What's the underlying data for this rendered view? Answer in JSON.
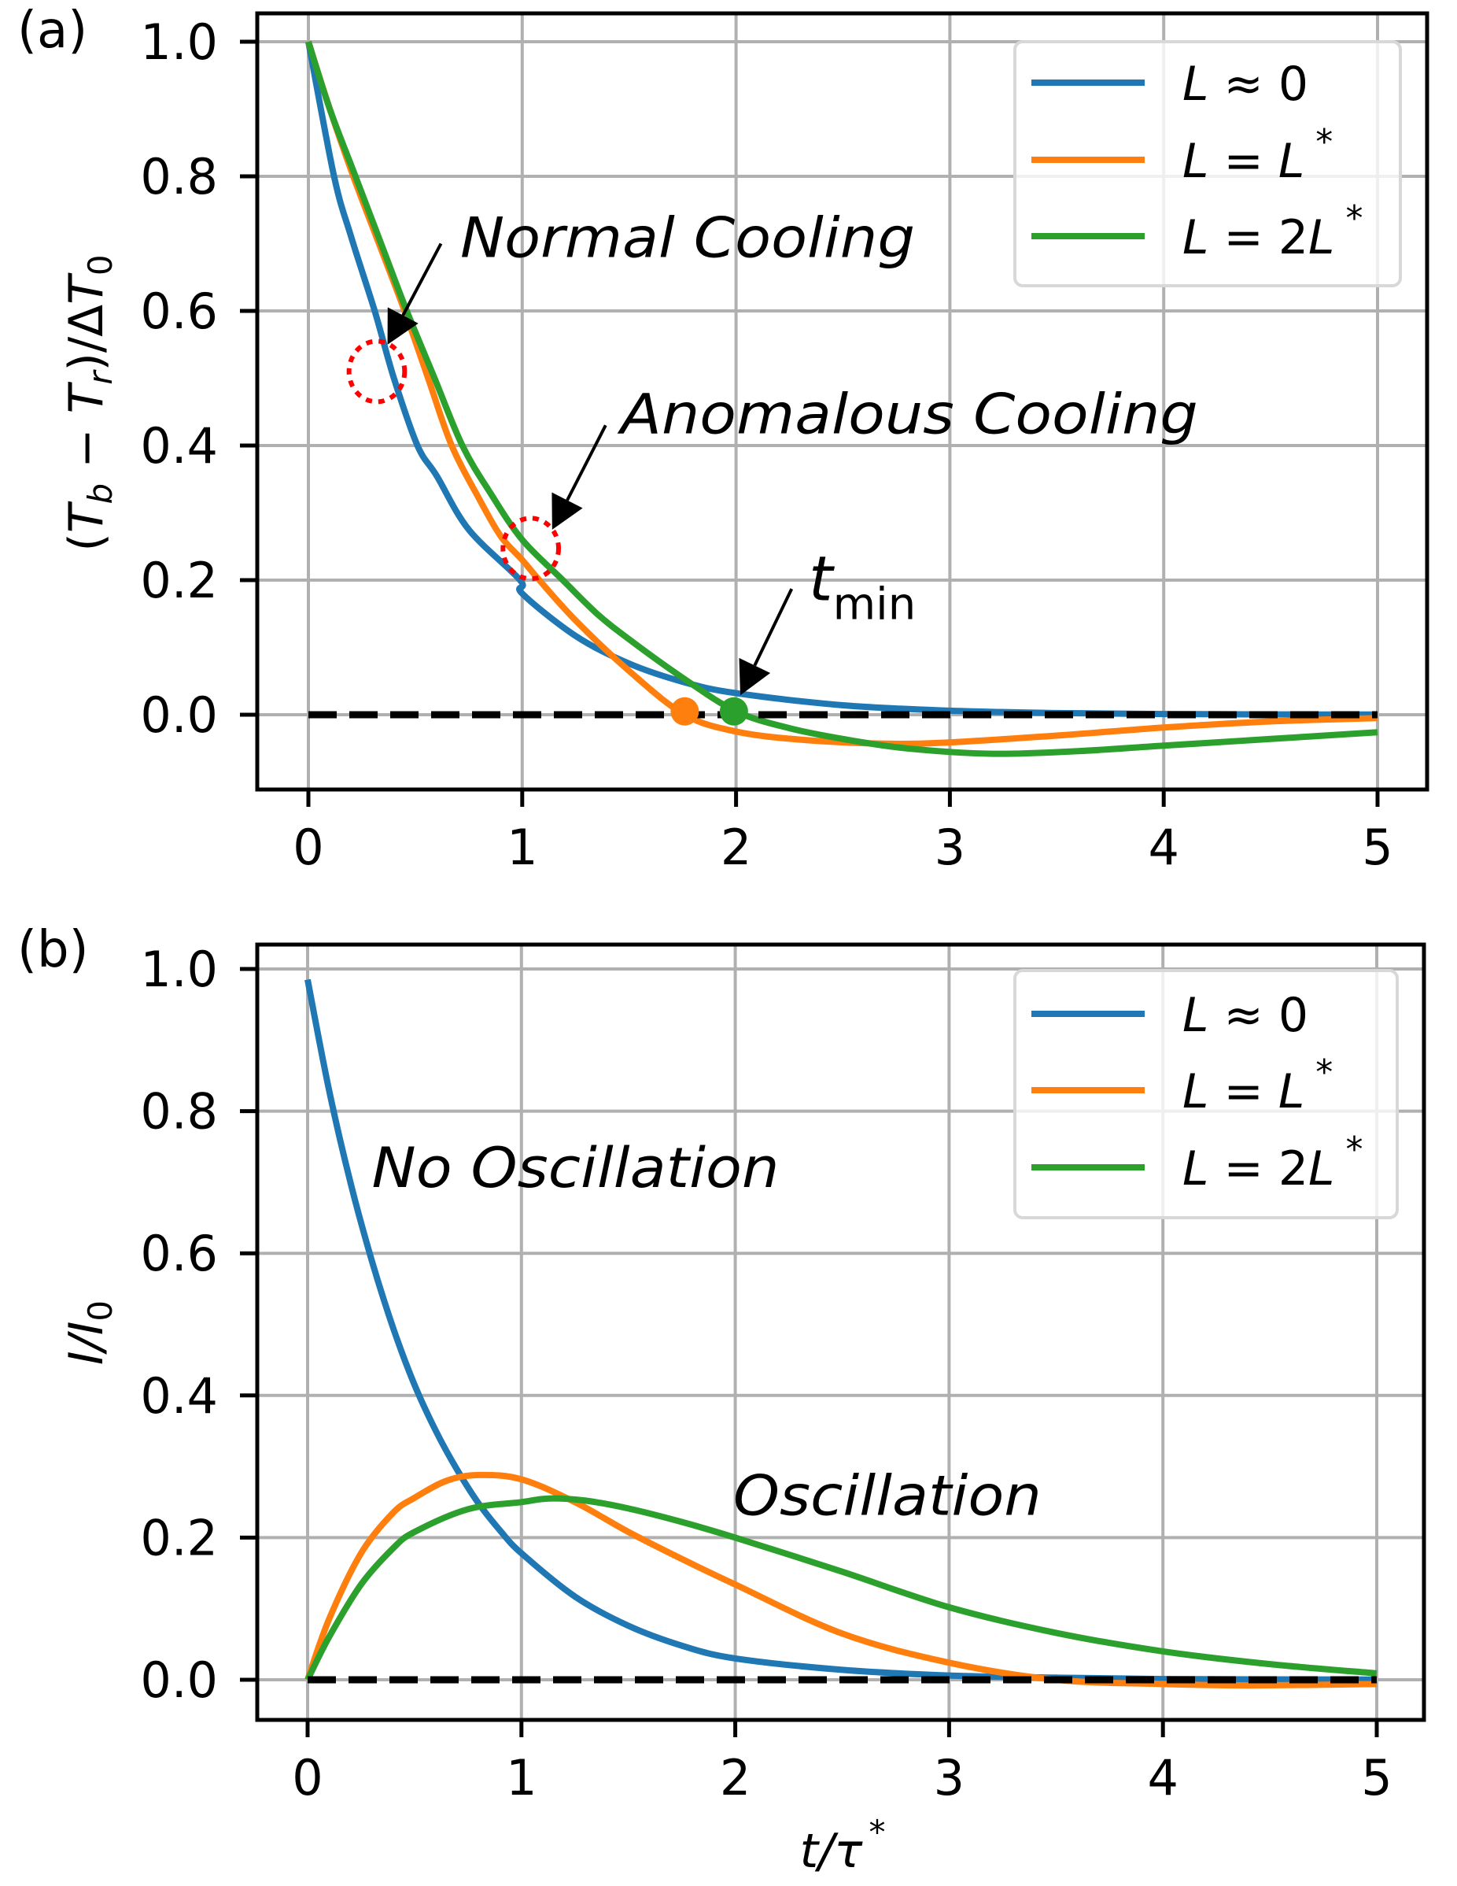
{
  "chart_data": [
    {
      "id": "a",
      "type": "line",
      "panel_label": "(a)",
      "title": "",
      "xlabel": "",
      "ylabel": "(T_b − T_r)/ΔT_0",
      "ylabel_parts": {
        "open": "(",
        "t1": "T",
        "sub1": "b",
        "minus": " − ",
        "t2": "T",
        "sub2": "r",
        "close": ")/Δ",
        "t3": "T",
        "sub3": "0"
      },
      "xlim": [
        -0.25,
        5.25
      ],
      "ylim": [
        -0.11,
        1.04
      ],
      "xticks": [
        0,
        1,
        2,
        3,
        4,
        5
      ],
      "xtick_labels": [
        "0",
        "1",
        "2",
        "3",
        "4",
        "5"
      ],
      "yticks": [
        0.0,
        0.2,
        0.4,
        0.6,
        0.8,
        1.0
      ],
      "ytick_labels": [
        "0.0",
        "0.2",
        "0.4",
        "0.6",
        "0.8",
        "1.0"
      ],
      "grid": true,
      "legend_position": "top-right",
      "reference_line": {
        "y": 0,
        "style": "dashed",
        "color": "#000000",
        "x_range": [
          0,
          5
        ]
      },
      "series": [
        {
          "name": "L ≈ 0",
          "legend": {
            "lhs": "L",
            "op": " ≈ ",
            "rhs": "0",
            "rhs_italic": false,
            "sup": ""
          },
          "color": "#1f77b4",
          "points": [
            [
              0,
              1.0
            ],
            [
              0.12,
              0.8
            ],
            [
              0.2,
              0.71
            ],
            [
              0.31,
              0.6
            ],
            [
              0.4,
              0.5
            ],
            [
              0.51,
              0.4
            ],
            [
              0.6,
              0.355
            ],
            [
              0.75,
              0.275
            ],
            [
              0.99,
              0.2
            ],
            [
              1.0,
              0.18
            ],
            [
              1.25,
              0.117
            ],
            [
              1.5,
              0.076
            ],
            [
              1.75,
              0.049
            ],
            [
              2.0,
              0.032
            ],
            [
              2.5,
              0.014
            ],
            [
              3.0,
              0.006
            ],
            [
              3.5,
              0.0025
            ],
            [
              4.0,
              0.001
            ],
            [
              4.5,
              0.0005
            ],
            [
              5.0,
              0.0002
            ]
          ]
        },
        {
          "name": "L = L*",
          "legend": {
            "lhs": "L",
            "op": " = ",
            "rhs": "L",
            "rhs_italic": true,
            "sup": "*"
          },
          "color": "#ff7f0e",
          "points": [
            [
              0,
              1.0
            ],
            [
              0.1,
              0.9
            ],
            [
              0.21,
              0.8
            ],
            [
              0.33,
              0.7
            ],
            [
              0.45,
              0.6
            ],
            [
              0.56,
              0.5
            ],
            [
              0.67,
              0.4
            ],
            [
              0.8,
              0.32
            ],
            [
              0.9,
              0.265
            ],
            [
              1.0,
              0.23
            ],
            [
              1.08,
              0.2
            ],
            [
              1.25,
              0.14
            ],
            [
              1.5,
              0.065
            ],
            [
              1.76,
              0.0
            ],
            [
              2.0,
              -0.025
            ],
            [
              2.3,
              -0.037
            ],
            [
              2.7,
              -0.043
            ],
            [
              3.0,
              -0.041
            ],
            [
              3.5,
              -0.031
            ],
            [
              4.0,
              -0.019
            ],
            [
              4.5,
              -0.01
            ],
            [
              5.0,
              -0.005
            ]
          ]
        },
        {
          "name": "L = 2L*",
          "legend": {
            "lhs": "L",
            "op": " = ",
            "rhs": "2L",
            "rhs_italic": true,
            "sup": "*"
          },
          "color": "#2ca02c",
          "points": [
            [
              0,
              1.0
            ],
            [
              0.1,
              0.9
            ],
            [
              0.22,
              0.8
            ],
            [
              0.34,
              0.7
            ],
            [
              0.46,
              0.6
            ],
            [
              0.59,
              0.5
            ],
            [
              0.72,
              0.4
            ],
            [
              0.85,
              0.33
            ],
            [
              1.0,
              0.26
            ],
            [
              1.19,
              0.2
            ],
            [
              1.35,
              0.15
            ],
            [
              1.5,
              0.112
            ],
            [
              1.75,
              0.055
            ],
            [
              2.0,
              0.005
            ],
            [
              2.25,
              -0.02
            ],
            [
              2.5,
              -0.036
            ],
            [
              2.8,
              -0.05
            ],
            [
              3.2,
              -0.058
            ],
            [
              3.6,
              -0.054
            ],
            [
              4.0,
              -0.046
            ],
            [
              4.5,
              -0.036
            ],
            [
              5.0,
              -0.026
            ]
          ]
        }
      ],
      "markers": [
        {
          "name": "orange-zero-crossing",
          "x": 1.76,
          "y": 0.005,
          "color": "#ff7f0e"
        },
        {
          "name": "green-tmin",
          "x": 1.99,
          "y": 0.005,
          "color": "#2ca02c"
        }
      ],
      "annotations": [
        {
          "id": "normal",
          "text": "Normal Cooling",
          "text_x": 0.71,
          "text_y": 0.68,
          "arrow_from": [
            0.62,
            0.7
          ],
          "arrow_to": [
            0.37,
            0.55
          ],
          "circle": {
            "x": 0.32,
            "y": 0.51,
            "r_x": 0.13,
            "r_y": 0.045
          }
        },
        {
          "id": "anomalous",
          "text": "Anomalous Cooling",
          "text_x": 1.46,
          "text_y": 0.418,
          "arrow_from": [
            1.39,
            0.43
          ],
          "arrow_to": [
            1.14,
            0.275
          ],
          "circle": {
            "x": 1.04,
            "y": 0.247,
            "r_x": 0.13,
            "r_y": 0.045
          }
        },
        {
          "id": "tmin",
          "text": "t",
          "sub": "min",
          "text_x": 2.34,
          "text_y": 0.17,
          "arrow_from": [
            2.26,
            0.187
          ],
          "arrow_to": [
            2.02,
            0.029
          ]
        }
      ]
    },
    {
      "id": "b",
      "type": "line",
      "panel_label": "(b)",
      "title": "",
      "xlabel": "t/τ*",
      "xlabel_parts": {
        "main": "t/τ",
        "sup": "*"
      },
      "ylabel": "I/I_0",
      "ylabel_parts": {
        "main": "I/I",
        "sub": "0"
      },
      "xlim": [
        -0.25,
        5.25
      ],
      "ylim": [
        -0.11,
        1.04
      ],
      "xticks": [
        0,
        1,
        2,
        3,
        4,
        5
      ],
      "xtick_labels": [
        "0",
        "1",
        "2",
        "3",
        "4",
        "5"
      ],
      "yticks": [
        0.0,
        0.2,
        0.4,
        0.6,
        0.8,
        1.0
      ],
      "ytick_labels": [
        "0.0",
        "0.2",
        "0.4",
        "0.6",
        "0.8",
        "1.0"
      ],
      "grid": true,
      "legend_position": "top-right",
      "reference_line": {
        "y": 0,
        "style": "dashed",
        "color": "#000000",
        "x_range": [
          0,
          5
        ]
      },
      "series": [
        {
          "name": "L ≈ 0",
          "legend": {
            "lhs": "L",
            "op": " ≈ ",
            "rhs": "0",
            "rhs_italic": false,
            "sup": ""
          },
          "color": "#1f77b4",
          "points": [
            [
              0,
              0.985
            ],
            [
              0.1,
              0.83
            ],
            [
              0.2,
              0.7
            ],
            [
              0.3,
              0.59
            ],
            [
              0.4,
              0.495
            ],
            [
              0.5,
              0.415
            ],
            [
              0.6,
              0.35
            ],
            [
              0.7,
              0.295
            ],
            [
              0.8,
              0.248
            ],
            [
              0.9,
              0.21
            ],
            [
              1.0,
              0.178
            ],
            [
              1.25,
              0.117
            ],
            [
              1.5,
              0.076
            ],
            [
              1.75,
              0.048
            ],
            [
              2.0,
              0.03
            ],
            [
              2.5,
              0.014
            ],
            [
              3.0,
              0.006
            ],
            [
              3.5,
              0.003
            ],
            [
              4.0,
              0.001
            ],
            [
              4.5,
              0.0005
            ],
            [
              5.0,
              0.0002
            ]
          ]
        },
        {
          "name": "L = L*",
          "legend": {
            "lhs": "L",
            "op": " = ",
            "rhs": "L",
            "rhs_italic": true,
            "sup": "*"
          },
          "color": "#ff7f0e",
          "points": [
            [
              0,
              0.0
            ],
            [
              0.1,
              0.085
            ],
            [
              0.25,
              0.178
            ],
            [
              0.4,
              0.235
            ],
            [
              0.5,
              0.256
            ],
            [
              0.65,
              0.28
            ],
            [
              0.8,
              0.288
            ],
            [
              1.0,
              0.282
            ],
            [
              1.25,
              0.25
            ],
            [
              1.5,
              0.208
            ],
            [
              1.75,
              0.17
            ],
            [
              2.0,
              0.134
            ],
            [
              2.5,
              0.065
            ],
            [
              3.0,
              0.024
            ],
            [
              3.5,
              0.0
            ],
            [
              4.0,
              -0.006
            ],
            [
              4.4,
              -0.008
            ],
            [
              5.0,
              -0.006
            ]
          ]
        },
        {
          "name": "L = 2L*",
          "legend": {
            "lhs": "L",
            "op": " = ",
            "rhs": "2L",
            "rhs_italic": true,
            "sup": "*"
          },
          "color": "#2ca02c",
          "points": [
            [
              0,
              0.0
            ],
            [
              0.1,
              0.06
            ],
            [
              0.25,
              0.134
            ],
            [
              0.4,
              0.185
            ],
            [
              0.5,
              0.208
            ],
            [
              0.75,
              0.24
            ],
            [
              1.0,
              0.25
            ],
            [
              1.13,
              0.255
            ],
            [
              1.3,
              0.252
            ],
            [
              1.5,
              0.241
            ],
            [
              1.75,
              0.222
            ],
            [
              2.0,
              0.2
            ],
            [
              2.5,
              0.152
            ],
            [
              3.0,
              0.102
            ],
            [
              3.5,
              0.066
            ],
            [
              4.0,
              0.04
            ],
            [
              4.5,
              0.022
            ],
            [
              5.0,
              0.009
            ]
          ]
        }
      ],
      "annotations": [
        {
          "id": "no-oscillation",
          "text": "No Oscillation",
          "text_x": 0.3,
          "text_y": 0.693
        },
        {
          "id": "oscillation",
          "text": "Oscillation",
          "text_x": 1.99,
          "text_y": 0.232
        }
      ]
    }
  ]
}
